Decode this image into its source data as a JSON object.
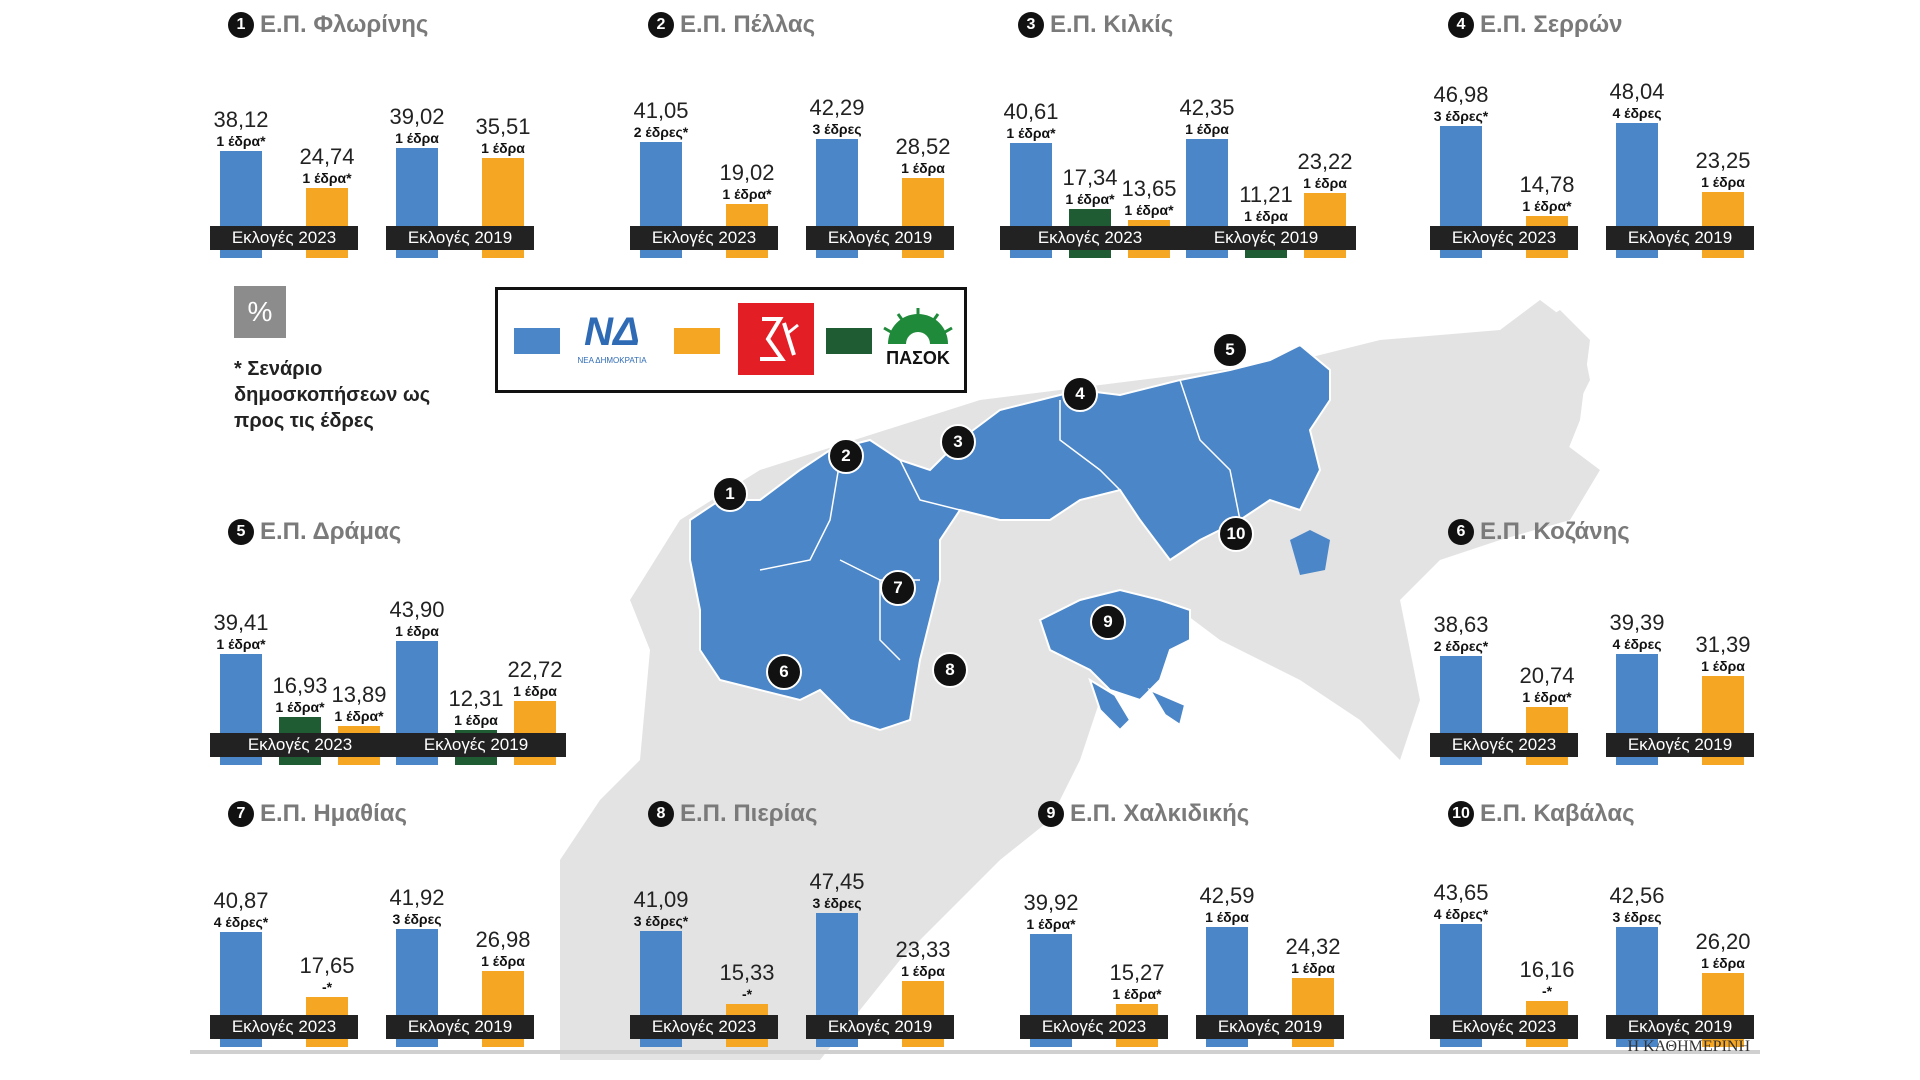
{
  "colors": {
    "nd": "#4a86c8",
    "syriza": "#f5a623",
    "pasok": "#1f5c34",
    "map_gray": "#e3e3e3",
    "map_blue": "#4a86c8"
  },
  "legend": {
    "nd_logo_text": "ΝΔ",
    "nd_logo_sub": "ΝΕΑ ΔΗΜΟΚΡΑΤΙΑ",
    "syriza_logo": "syriza-logo",
    "pasok_logo_text": "ΠΑΣΟΚ"
  },
  "percent_label": "%",
  "footnote": "* Σενάριο δημοσκοπήσεων ως προς τις έδρες",
  "source": "Η ΚΑΘΗΜΕΡΙΝΗ",
  "chart_data": [
    {
      "type": "bar",
      "num": "1",
      "title": "Ε.Π. Φλωρίνης",
      "ylim": [
        0,
        60
      ],
      "groups": [
        {
          "label": "Εκλογές 2023",
          "bars": [
            {
              "party": "nd",
              "value": 38.12,
              "value_label": "38,12",
              "seats": "1 έδρα*"
            },
            {
              "party": "syriza",
              "value": 24.74,
              "value_label": "24,74",
              "seats": "1 έδρα*"
            }
          ]
        },
        {
          "label": "Εκλογές 2019",
          "bars": [
            {
              "party": "nd",
              "value": 39.02,
              "value_label": "39,02",
              "seats": "1 έδρα"
            },
            {
              "party": "syriza",
              "value": 35.51,
              "value_label": "35,51",
              "seats": "1 έδρα"
            }
          ]
        }
      ]
    },
    {
      "type": "bar",
      "num": "2",
      "title": "Ε.Π. Πέλλας",
      "ylim": [
        0,
        60
      ],
      "groups": [
        {
          "label": "Εκλογές 2023",
          "bars": [
            {
              "party": "nd",
              "value": 41.05,
              "value_label": "41,05",
              "seats": "2 έδρες*"
            },
            {
              "party": "syriza",
              "value": 19.02,
              "value_label": "19,02",
              "seats": "1 έδρα*"
            }
          ]
        },
        {
          "label": "Εκλογές 2019",
          "bars": [
            {
              "party": "nd",
              "value": 42.29,
              "value_label": "42,29",
              "seats": "3 έδρες"
            },
            {
              "party": "syriza",
              "value": 28.52,
              "value_label": "28,52",
              "seats": "1 έδρα"
            }
          ]
        }
      ]
    },
    {
      "type": "bar",
      "num": "3",
      "title": "Ε.Π. Κιλκίς",
      "ylim": [
        0,
        60
      ],
      "groups": [
        {
          "label": "Εκλογές 2023",
          "bars": [
            {
              "party": "nd",
              "value": 40.61,
              "value_label": "40,61",
              "seats": "1 έδρα*"
            },
            {
              "party": "pasok",
              "value": 17.34,
              "value_label": "17,34",
              "seats": "1 έδρα*"
            },
            {
              "party": "syriza",
              "value": 13.65,
              "value_label": "13,65",
              "seats": "1 έδρα*"
            }
          ]
        },
        {
          "label": "Εκλογές 2019",
          "bars": [
            {
              "party": "nd",
              "value": 42.35,
              "value_label": "42,35",
              "seats": "1 έδρα"
            },
            {
              "party": "pasok",
              "value": 11.21,
              "value_label": "11,21",
              "seats": "1 έδρα"
            },
            {
              "party": "syriza",
              "value": 23.22,
              "value_label": "23,22",
              "seats": "1 έδρα"
            }
          ]
        }
      ]
    },
    {
      "type": "bar",
      "num": "4",
      "title": "Ε.Π. Σερρών",
      "ylim": [
        0,
        60
      ],
      "groups": [
        {
          "label": "Εκλογές 2023",
          "bars": [
            {
              "party": "nd",
              "value": 46.98,
              "value_label": "46,98",
              "seats": "3 έδρες*"
            },
            {
              "party": "syriza",
              "value": 14.78,
              "value_label": "14,78",
              "seats": "1 έδρα*"
            }
          ]
        },
        {
          "label": "Εκλογές 2019",
          "bars": [
            {
              "party": "nd",
              "value": 48.04,
              "value_label": "48,04",
              "seats": "4 έδρες"
            },
            {
              "party": "syriza",
              "value": 23.25,
              "value_label": "23,25",
              "seats": "1 έδρα"
            }
          ]
        }
      ]
    },
    {
      "type": "bar",
      "num": "5",
      "title": "Ε.Π. Δράμας",
      "ylim": [
        0,
        60
      ],
      "groups": [
        {
          "label": "Εκλογές 2023",
          "bars": [
            {
              "party": "nd",
              "value": 39.41,
              "value_label": "39,41",
              "seats": "1 έδρα*"
            },
            {
              "party": "pasok",
              "value": 16.93,
              "value_label": "16,93",
              "seats": "1 έδρα*"
            },
            {
              "party": "syriza",
              "value": 13.89,
              "value_label": "13,89",
              "seats": "1 έδρα*"
            }
          ]
        },
        {
          "label": "Εκλογές 2019",
          "bars": [
            {
              "party": "nd",
              "value": 43.9,
              "value_label": "43,90",
              "seats": "1 έδρα"
            },
            {
              "party": "pasok",
              "value": 12.31,
              "value_label": "12,31",
              "seats": "1 έδρα"
            },
            {
              "party": "syriza",
              "value": 22.72,
              "value_label": "22,72",
              "seats": "1 έδρα"
            }
          ]
        }
      ]
    },
    {
      "type": "bar",
      "num": "6",
      "title": "Ε.Π. Κοζάνης",
      "ylim": [
        0,
        60
      ],
      "groups": [
        {
          "label": "Εκλογές 2023",
          "bars": [
            {
              "party": "nd",
              "value": 38.63,
              "value_label": "38,63",
              "seats": "2 έδρες*"
            },
            {
              "party": "syriza",
              "value": 20.74,
              "value_label": "20,74",
              "seats": "1 έδρα*"
            }
          ]
        },
        {
          "label": "Εκλογές 2019",
          "bars": [
            {
              "party": "nd",
              "value": 39.39,
              "value_label": "39,39",
              "seats": "4 έδρες"
            },
            {
              "party": "syriza",
              "value": 31.39,
              "value_label": "31,39",
              "seats": "1 έδρα"
            }
          ]
        }
      ]
    },
    {
      "type": "bar",
      "num": "7",
      "title": "Ε.Π. Ημαθίας",
      "ylim": [
        0,
        60
      ],
      "groups": [
        {
          "label": "Εκλογές 2023",
          "bars": [
            {
              "party": "nd",
              "value": 40.87,
              "value_label": "40,87",
              "seats": "4 έδρες*"
            },
            {
              "party": "syriza",
              "value": 17.65,
              "value_label": "17,65",
              "seats": "-*"
            }
          ]
        },
        {
          "label": "Εκλογές 2019",
          "bars": [
            {
              "party": "nd",
              "value": 41.92,
              "value_label": "41,92",
              "seats": "3 έδρες"
            },
            {
              "party": "syriza",
              "value": 26.98,
              "value_label": "26,98",
              "seats": "1 έδρα"
            }
          ]
        }
      ]
    },
    {
      "type": "bar",
      "num": "8",
      "title": "Ε.Π. Πιερίας",
      "ylim": [
        0,
        60
      ],
      "groups": [
        {
          "label": "Εκλογές 2023",
          "bars": [
            {
              "party": "nd",
              "value": 41.09,
              "value_label": "41,09",
              "seats": "3 έδρες*"
            },
            {
              "party": "syriza",
              "value": 15.33,
              "value_label": "15,33",
              "seats": "-*"
            }
          ]
        },
        {
          "label": "Εκλογές 2019",
          "bars": [
            {
              "party": "nd",
              "value": 47.45,
              "value_label": "47,45",
              "seats": "3 έδρες"
            },
            {
              "party": "syriza",
              "value": 23.33,
              "value_label": "23,33",
              "seats": "1 έδρα"
            }
          ]
        }
      ]
    },
    {
      "type": "bar",
      "num": "9",
      "title": "Ε.Π. Χαλκιδικής",
      "ylim": [
        0,
        60
      ],
      "groups": [
        {
          "label": "Εκλογές 2023",
          "bars": [
            {
              "party": "nd",
              "value": 39.92,
              "value_label": "39,92",
              "seats": "1 έδρα*"
            },
            {
              "party": "syriza",
              "value": 15.27,
              "value_label": "15,27",
              "seats": "1 έδρα*"
            }
          ]
        },
        {
          "label": "Εκλογές 2019",
          "bars": [
            {
              "party": "nd",
              "value": 42.59,
              "value_label": "42,59",
              "seats": "1 έδρα"
            },
            {
              "party": "syriza",
              "value": 24.32,
              "value_label": "24,32",
              "seats": "1 έδρα"
            }
          ]
        }
      ]
    },
    {
      "type": "bar",
      "num": "10",
      "title": "Ε.Π. Καβάλας",
      "ylim": [
        0,
        60
      ],
      "groups": [
        {
          "label": "Εκλογές 2023",
          "bars": [
            {
              "party": "nd",
              "value": 43.65,
              "value_label": "43,65",
              "seats": "4 έδρες*"
            },
            {
              "party": "syriza",
              "value": 16.16,
              "value_label": "16,16",
              "seats": "-*"
            }
          ]
        },
        {
          "label": "Εκλογές 2019",
          "bars": [
            {
              "party": "nd",
              "value": 42.56,
              "value_label": "42,56",
              "seats": "3 έδρες"
            },
            {
              "party": "syriza",
              "value": 26.2,
              "value_label": "26,20",
              "seats": "1 έδρα"
            }
          ]
        }
      ]
    }
  ],
  "map": {
    "region_labels": [
      "1",
      "2",
      "3",
      "4",
      "5",
      "6",
      "7",
      "8",
      "9",
      "10"
    ]
  }
}
